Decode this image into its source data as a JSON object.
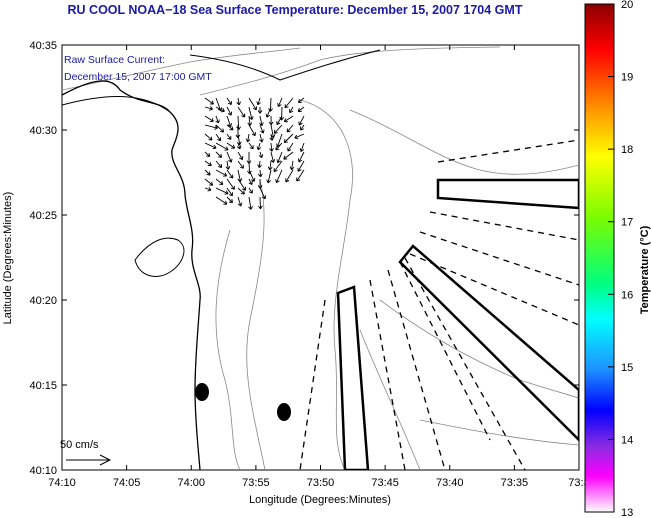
{
  "title": "RU COOL  NOAA−18  Sea Surface Temperature:  December 15, 2007 1704 GMT",
  "annotation": {
    "line1": "Raw Surface Current:",
    "line2": "December 15, 2007 17:00 GMT"
  },
  "scale_label": "50 cm/s",
  "x_axis": {
    "label": "Longitude (Degrees:Minutes)",
    "ticks": [
      "74:10",
      "74:05",
      "74:00",
      "73:55",
      "73:50",
      "73:45",
      "73:40",
      "73:35",
      "73:3"
    ]
  },
  "y_axis": {
    "label": "Latitude (Degrees:Minutes)",
    "ticks": [
      "40:35",
      "40:30",
      "40:25",
      "40:20",
      "40:15",
      "40:10"
    ]
  },
  "colorbar": {
    "label": "Temperature (°C)",
    "ticks": [
      "20",
      "19",
      "18",
      "17",
      "16",
      "15",
      "14",
      "13"
    ],
    "colors": [
      "#8b0000",
      "#ff0000",
      "#ff8c00",
      "#ffff00",
      "#7cfc00",
      "#00ff7f",
      "#00ffff",
      "#1e90ff",
      "#0000ff",
      "#8a2be2",
      "#ff00ff",
      "#ffffff"
    ]
  }
}
